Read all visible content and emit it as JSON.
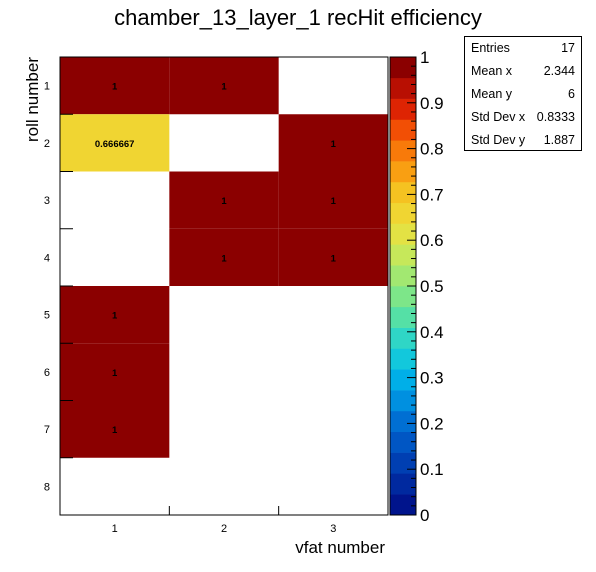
{
  "chart_data": {
    "type": "heatmap",
    "title": "chamber_13_layer_1 recHit efficiency",
    "xlabel": "vfat number",
    "ylabel": "roll number",
    "x_categories": [
      "1",
      "2",
      "3"
    ],
    "y_categories": [
      "1",
      "2",
      "3",
      "4",
      "5",
      "6",
      "7",
      "8"
    ],
    "cells": [
      {
        "x": "1",
        "y": "1",
        "value": 1,
        "label": "1"
      },
      {
        "x": "2",
        "y": "1",
        "value": 1,
        "label": "1"
      },
      {
        "x": "1",
        "y": "2",
        "value": 0.666667,
        "label": "0.666667"
      },
      {
        "x": "3",
        "y": "2",
        "value": 1,
        "label": "1"
      },
      {
        "x": "2",
        "y": "3",
        "value": 1,
        "label": "1"
      },
      {
        "x": "3",
        "y": "3",
        "value": 1,
        "label": "1"
      },
      {
        "x": "2",
        "y": "4",
        "value": 1,
        "label": "1"
      },
      {
        "x": "3",
        "y": "4",
        "value": 1,
        "label": "1"
      },
      {
        "x": "1",
        "y": "5",
        "value": 1,
        "label": "1"
      },
      {
        "x": "1",
        "y": "6",
        "value": 1,
        "label": "1"
      },
      {
        "x": "1",
        "y": "7",
        "value": 1,
        "label": "1"
      }
    ],
    "zlim": [
      0,
      1
    ],
    "z_ticks": [
      "0",
      "0.1",
      "0.2",
      "0.3",
      "0.4",
      "0.5",
      "0.6",
      "0.7",
      "0.8",
      "0.9",
      "1"
    ],
    "palette": [
      "#00148c",
      "#00299f",
      "#003fb2",
      "#0056c4",
      "#006fd3",
      "#0090e0",
      "#00afe8",
      "#12c8dc",
      "#2fd6c6",
      "#55e0a6",
      "#7de689",
      "#a2e871",
      "#c6e85a",
      "#e3e244",
      "#f0d532",
      "#f5c221",
      "#f99f12",
      "#f87a0a",
      "#f24f05",
      "#de2403",
      "#b80f02",
      "#8b0000"
    ],
    "grid": false,
    "stats_box": {
      "entries_label": "Entries",
      "entries": "17",
      "mean_x_label": "Mean x",
      "mean_x": "2.344",
      "mean_y_label": "Mean y",
      "mean_y": "6",
      "std_x_label": "Std Dev x",
      "std_x": "0.8333",
      "std_y_label": "Std Dev y",
      "std_y": "1.887"
    }
  }
}
